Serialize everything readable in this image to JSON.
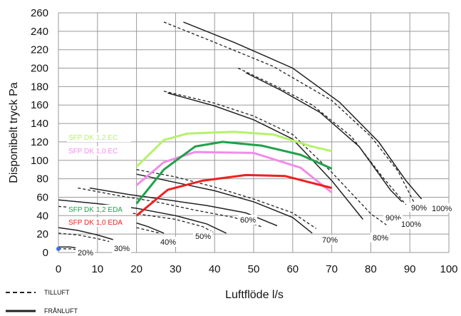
{
  "chart_data": {
    "type": "line",
    "xlabel": "Luftflöde l/s",
    "ylabel": "Disponibelt tryck Pa",
    "xlim": [
      0,
      100
    ],
    "ylim": [
      0,
      260
    ],
    "xticks": [
      0,
      10,
      20,
      30,
      40,
      50,
      60,
      70,
      80,
      90,
      100
    ],
    "yticks": [
      0,
      20,
      40,
      60,
      80,
      100,
      120,
      140,
      160,
      180,
      200,
      220,
      240,
      260
    ],
    "grid": true,
    "legend": [
      {
        "label": "TILLUFT",
        "style": "dashed"
      },
      {
        "label": "FRÅNLUFT",
        "style": "solid"
      }
    ],
    "fan_curves": [
      {
        "speed": "20%",
        "tilluft": [
          [
            0,
            4
          ],
          [
            3,
            4
          ],
          [
            5,
            3
          ],
          [
            6,
            2
          ]
        ],
        "franluft": [
          [
            0,
            6
          ],
          [
            3,
            6
          ],
          [
            6,
            4
          ],
          [
            8,
            2
          ]
        ]
      },
      {
        "speed": "30%",
        "tilluft": [
          [
            0,
            21
          ],
          [
            5,
            19
          ],
          [
            10,
            15
          ],
          [
            13,
            12
          ]
        ],
        "franluft": [
          [
            0,
            27
          ],
          [
            5,
            24
          ],
          [
            10,
            19
          ],
          [
            14,
            14
          ]
        ]
      },
      {
        "speed": "40%",
        "tilluft": [
          [
            20,
            27
          ],
          [
            23,
            24
          ],
          [
            26,
            21
          ]
        ],
        "franluft": [
          [
            20,
            32
          ],
          [
            23,
            28
          ],
          [
            27,
            21
          ]
        ]
      },
      {
        "speed": "50%",
        "tilluft": [
          [
            0,
            50
          ],
          [
            10,
            47
          ],
          [
            20,
            42
          ],
          [
            30,
            36
          ],
          [
            37,
            28
          ],
          [
            40,
            21
          ]
        ],
        "franluft": [
          [
            0,
            57
          ],
          [
            10,
            53
          ],
          [
            20,
            48
          ],
          [
            30,
            40
          ],
          [
            38,
            31
          ],
          [
            43,
            21
          ]
        ]
      },
      {
        "speed": "60%",
        "tilluft": [
          [
            5,
            70
          ],
          [
            15,
            62
          ],
          [
            25,
            55
          ],
          [
            35,
            46
          ],
          [
            45,
            38
          ],
          [
            52,
            28
          ]
        ],
        "franluft": [
          [
            8,
            70
          ],
          [
            18,
            63
          ],
          [
            28,
            57
          ],
          [
            38,
            51
          ],
          [
            48,
            43
          ],
          [
            56,
            29
          ]
        ]
      },
      {
        "speed": "70%",
        "tilluft": [
          [
            20,
            90
          ],
          [
            30,
            82
          ],
          [
            40,
            71
          ],
          [
            50,
            58
          ],
          [
            60,
            43
          ],
          [
            66,
            26
          ]
        ],
        "franluft": [
          [
            20,
            85
          ],
          [
            30,
            76
          ],
          [
            40,
            67
          ],
          [
            50,
            55
          ],
          [
            60,
            38
          ],
          [
            65,
            21
          ]
        ]
      },
      {
        "speed": "80%",
        "tilluft": [
          [
            27,
            175
          ],
          [
            40,
            162
          ],
          [
            50,
            148
          ],
          [
            60,
            128
          ],
          [
            70,
            87
          ],
          [
            80,
            42
          ],
          [
            84,
            30
          ]
        ],
        "franluft": [
          [
            28,
            173
          ],
          [
            40,
            159
          ],
          [
            50,
            144
          ],
          [
            60,
            123
          ],
          [
            70,
            78
          ],
          [
            78,
            36
          ]
        ]
      },
      {
        "speed": "90%",
        "tilluft": [
          [
            46,
            200
          ],
          [
            55,
            182
          ],
          [
            65,
            160
          ],
          [
            75,
            126
          ],
          [
            83,
            82
          ],
          [
            89,
            52
          ]
        ],
        "franluft": [
          [
            48,
            195
          ],
          [
            57,
            176
          ],
          [
            67,
            152
          ],
          [
            77,
            115
          ],
          [
            85,
            68
          ],
          [
            88,
            55
          ]
        ]
      },
      {
        "speed": "100%",
        "tilluft": [
          [
            27,
            250
          ],
          [
            40,
            228
          ],
          [
            55,
            202
          ],
          [
            70,
            165
          ],
          [
            80,
            126
          ],
          [
            87,
            88
          ],
          [
            91,
            55
          ]
        ],
        "franluft": [
          [
            32,
            250
          ],
          [
            45,
            228
          ],
          [
            60,
            200
          ],
          [
            72,
            163
          ],
          [
            82,
            120
          ],
          [
            89,
            78
          ],
          [
            93,
            58
          ]
        ]
      }
    ],
    "sfp_series": [
      {
        "name": "SFP DK 1,2  EC",
        "color": "#b5f26a",
        "points": [
          [
            20,
            93
          ],
          [
            27,
            122
          ],
          [
            33,
            129
          ],
          [
            45,
            131
          ],
          [
            55,
            128
          ],
          [
            65,
            115
          ],
          [
            70,
            110
          ]
        ]
      },
      {
        "name": "SFP DK 1,0  EC",
        "color": "#f28bea",
        "points": [
          [
            20,
            73
          ],
          [
            27,
            98
          ],
          [
            35,
            109
          ],
          [
            50,
            108
          ],
          [
            62,
            92
          ],
          [
            70,
            65
          ]
        ]
      },
      {
        "name": "SFP DK 1,2 EDA",
        "color": "#1ea24a",
        "points": [
          [
            20,
            53
          ],
          [
            27,
            90
          ],
          [
            35,
            115
          ],
          [
            42,
            120
          ],
          [
            52,
            116
          ],
          [
            62,
            106
          ],
          [
            70,
            91
          ]
        ]
      },
      {
        "name": "SFP DK 1,0 EDA",
        "color": "#ee2020",
        "points": [
          [
            20,
            40
          ],
          [
            28,
            68
          ],
          [
            37,
            78
          ],
          [
            48,
            84
          ],
          [
            58,
            83
          ],
          [
            70,
            70
          ]
        ]
      }
    ]
  }
}
